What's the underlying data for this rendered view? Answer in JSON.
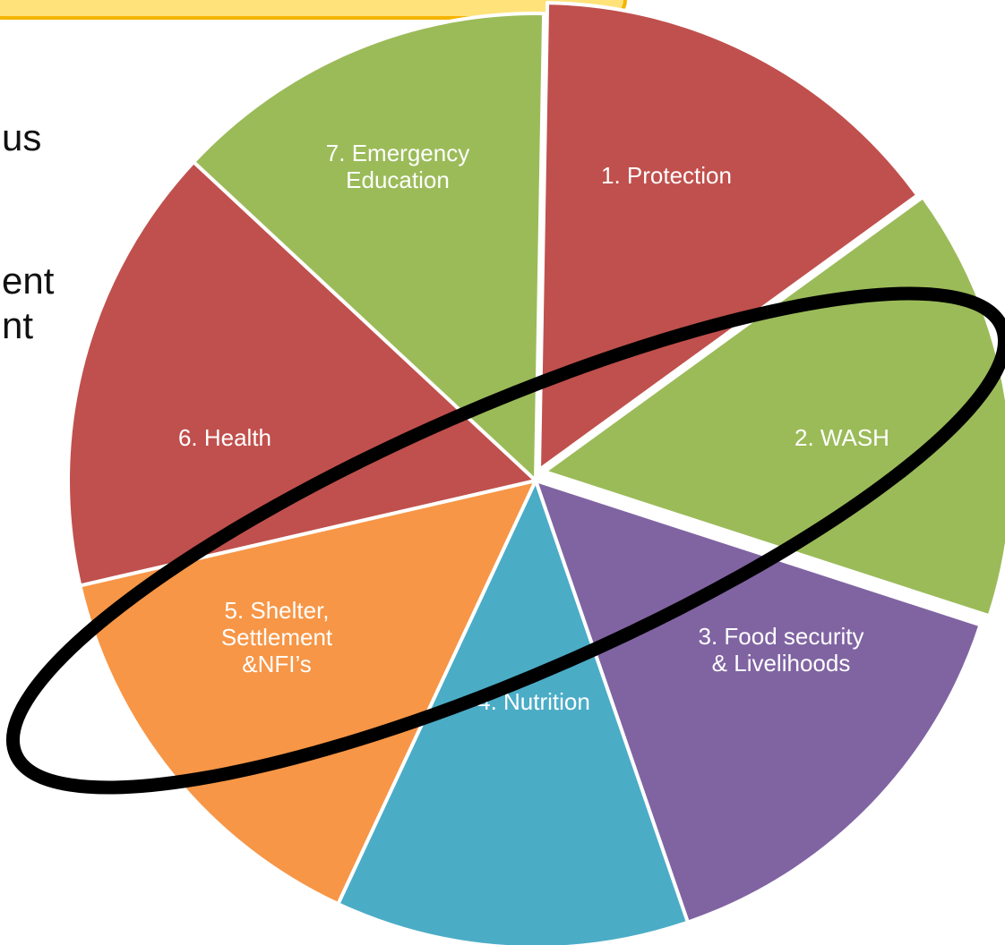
{
  "background_text": [
    "us",
    "ent",
    "nt"
  ],
  "diagram": {
    "type": "pie",
    "segments": [
      {
        "id": "protection",
        "label": [
          "1. Protection"
        ],
        "color": "#c0504d"
      },
      {
        "id": "wash",
        "label": [
          "2. WASH"
        ],
        "color": "#9bbb59"
      },
      {
        "id": "food-security",
        "label": [
          "3. Food security",
          "& Livelihoods"
        ],
        "color": "#8064a2"
      },
      {
        "id": "nutrition",
        "label": [
          "4. Nutrition"
        ],
        "color": "#4bacc6"
      },
      {
        "id": "shelter",
        "label": [
          "5. Shelter,",
          "Settlement",
          "&NFI’s"
        ],
        "color": "#f79646"
      },
      {
        "id": "health",
        "label": [
          "6. Health"
        ],
        "color": "#c0504d"
      },
      {
        "id": "emergency-education",
        "label": [
          "7. Emergency",
          "Education"
        ],
        "color": "#9bbb59"
      }
    ],
    "highlight": {
      "shape": "ellipse",
      "color": "#000000",
      "encircled_segments": [
        "wash",
        "shelter"
      ]
    }
  }
}
